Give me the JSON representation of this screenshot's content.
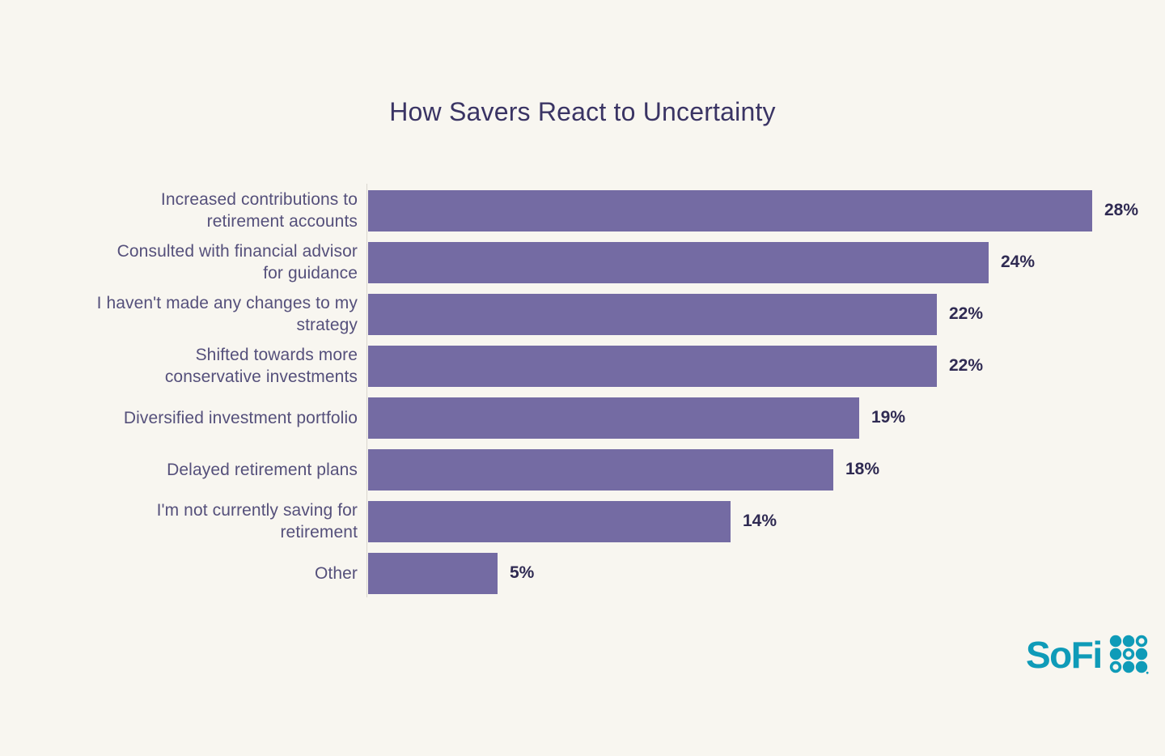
{
  "chart_data": {
    "type": "bar",
    "orientation": "horizontal",
    "title": "How Savers React to Uncertainty",
    "categories": [
      "Increased contributions to\nretirement accounts",
      "Consulted with financial advisor\nfor guidance",
      "I haven't made any changes to my\nstrategy",
      "Shifted towards more\nconservative investments",
      "Diversified investment portfolio",
      "Delayed retirement plans",
      "I'm not currently saving for\nretirement",
      "Other"
    ],
    "values": [
      28,
      24,
      22,
      22,
      19,
      18,
      14,
      5
    ],
    "value_labels": [
      "28%",
      "24%",
      "22%",
      "22%",
      "19%",
      "18%",
      "14%",
      "5%"
    ],
    "xlim": [
      0,
      28
    ],
    "grid": false,
    "legend": false,
    "colors": {
      "background": "#f8f6f0",
      "bar": "#746ba3",
      "title": "#3a3464",
      "category_label": "#55507b",
      "value_label": "#2f2a52",
      "axis_line": "#d9d6cf"
    }
  },
  "logo": {
    "text": "SoFi",
    "color": "#0f9bb8",
    "grid_pattern": [
      [
        "filled",
        "filled",
        "outline"
      ],
      [
        "filled",
        "outline",
        "filled"
      ],
      [
        "outline",
        "filled",
        "filled"
      ]
    ]
  }
}
